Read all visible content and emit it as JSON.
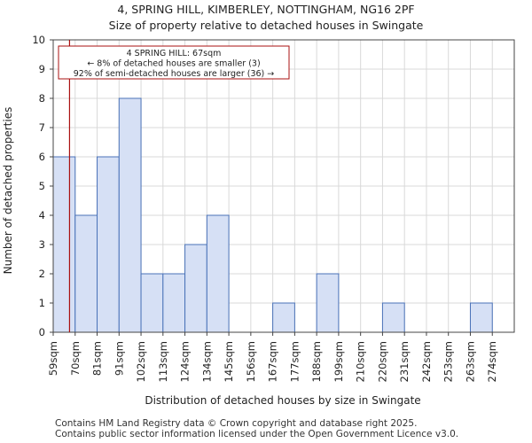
{
  "header": {
    "title_line1": "4, SPRING HILL, KIMBERLEY, NOTTINGHAM, NG16 2PF",
    "title_line2": "Size of property relative to detached houses in Swingate"
  },
  "chart_data": {
    "type": "bar",
    "title": "Size of property relative to detached houses in Swingate",
    "xlabel": "Distribution of detached houses by size in Swingate",
    "ylabel": "Number of detached properties",
    "ylim": [
      0,
      10
    ],
    "yticks": [
      "0",
      "1",
      "2",
      "3",
      "4",
      "5",
      "6",
      "7",
      "8",
      "9",
      "10"
    ],
    "categories": [
      "59sqm",
      "70sqm",
      "81sqm",
      "91sqm",
      "102sqm",
      "113sqm",
      "124sqm",
      "134sqm",
      "145sqm",
      "156sqm",
      "167sqm",
      "177sqm",
      "188sqm",
      "199sqm",
      "210sqm",
      "220sqm",
      "231sqm",
      "242sqm",
      "253sqm",
      "263sqm",
      "274sqm"
    ],
    "values": [
      6,
      4,
      6,
      8,
      2,
      2,
      3,
      4,
      0,
      0,
      1,
      0,
      2,
      0,
      0,
      1,
      0,
      0,
      0,
      1,
      0
    ],
    "grid": true,
    "bar_color": "#d6e0f5",
    "bar_edge_color": "#4a72b8",
    "marker": {
      "value_sqm": 67,
      "color": "#aa1111",
      "label_lines": [
        "4 SPRING HILL: 67sqm",
        "← 8% of detached houses are smaller (3)",
        "92% of semi-detached houses are larger (36) →"
      ]
    }
  },
  "footer": {
    "line1": "Contains HM Land Registry data © Crown copyright and database right 2025.",
    "line2": "Contains public sector information licensed under the Open Government Licence v3.0."
  }
}
